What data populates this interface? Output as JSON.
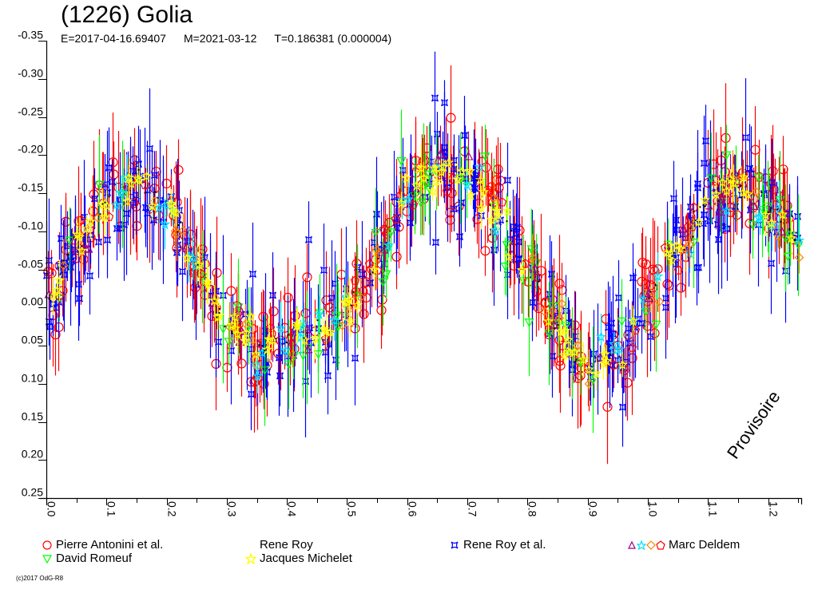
{
  "chart_data": {
    "type": "scatter",
    "title": "(1226) Golia",
    "subtitle": {
      "epoch": "E=2017-04-16.69407",
      "modified": "M=2021-03-12",
      "period": "T=0.186381 (0.000004)"
    },
    "xlabel": "",
    "ylabel": "",
    "xlim": [
      0.0,
      1.255
    ],
    "ylim": [
      -0.35,
      0.25
    ],
    "y_inverted": true,
    "x_ticks": [
      "0.0",
      "0.1",
      "0.2",
      "0.3",
      "0.4",
      "0.5",
      "0.6",
      "0.7",
      "0.8",
      "0.9",
      "1.0",
      "1.1",
      "1.2"
    ],
    "y_ticks": [
      "-0.35",
      "-0.30",
      "-0.25",
      "-0.20",
      "-0.15",
      "-0.10",
      "-0.05",
      "0.00",
      "0.05",
      "0.10",
      "0.15",
      "0.20",
      "0.25"
    ],
    "grid": false,
    "legend_position": "bottom",
    "lightcurve_model": {
      "description": "double-peaked phased lightcurve",
      "mean": -0.055,
      "points": [
        {
          "phase": 0.0,
          "mag": -0.01
        },
        {
          "phase": 0.05,
          "mag": -0.08
        },
        {
          "phase": 0.1,
          "mag": -0.14
        },
        {
          "phase": 0.15,
          "mag": -0.165
        },
        {
          "phase": 0.2,
          "mag": -0.13
        },
        {
          "phase": 0.25,
          "mag": -0.06
        },
        {
          "phase": 0.3,
          "mag": 0.02
        },
        {
          "phase": 0.35,
          "mag": 0.055
        },
        {
          "phase": 0.4,
          "mag": 0.04
        },
        {
          "phase": 0.45,
          "mag": 0.03
        },
        {
          "phase": 0.5,
          "mag": 0.0
        },
        {
          "phase": 0.55,
          "mag": -0.07
        },
        {
          "phase": 0.6,
          "mag": -0.15
        },
        {
          "phase": 0.65,
          "mag": -0.18
        },
        {
          "phase": 0.7,
          "mag": -0.17
        },
        {
          "phase": 0.75,
          "mag": -0.13
        },
        {
          "phase": 0.8,
          "mag": -0.05
        },
        {
          "phase": 0.85,
          "mag": 0.03
        },
        {
          "phase": 0.9,
          "mag": 0.08
        },
        {
          "phase": 0.95,
          "mag": 0.06
        },
        {
          "phase": 1.0,
          "mag": -0.01
        },
        {
          "phase": 1.05,
          "mag": -0.08
        },
        {
          "phase": 1.1,
          "mag": -0.14
        },
        {
          "phase": 1.15,
          "mag": -0.165
        },
        {
          "phase": 1.2,
          "mag": -0.13
        },
        {
          "phase": 1.255,
          "mag": -0.09
        }
      ]
    },
    "series": [
      {
        "name": "Pierre Antonini et al.",
        "marker": "circle",
        "color": "#ff0000",
        "count": 260,
        "scatter": 0.03,
        "err": 0.05
      },
      {
        "name": "Rene Roy",
        "marker": "none",
        "color": "#000000",
        "count": 90,
        "scatter": 0.008,
        "err": 0.01
      },
      {
        "name": "Rene Roy et al.",
        "marker": "square-star",
        "color": "#0000ff",
        "count": 260,
        "scatter": 0.03,
        "err": 0.055
      },
      {
        "name": "Marc Deldem",
        "marker": "triangle-star-diamond-pentagon",
        "color": "#ff8000",
        "colors": [
          "#a00080",
          "#00e0ff",
          "#ff8000",
          "#ff0000"
        ],
        "count": 160,
        "scatter": 0.015,
        "err": 0.025
      },
      {
        "name": "David Romeuf",
        "marker": "triangle-down",
        "color": "#00ff00",
        "count": 70,
        "scatter": 0.025,
        "err": 0.05
      },
      {
        "name": "Jacques Michelet",
        "marker": "star",
        "color": "#ffff00",
        "count": 110,
        "scatter": 0.012,
        "err": 0.02
      }
    ]
  },
  "watermark": "Provisoire",
  "copyright": "(c)2017 OdG-R8",
  "legend": [
    {
      "label": "Pierre Antonini et al.",
      "symbol": "circle-icon"
    },
    {
      "label": "Rene Roy",
      "symbol": "none"
    },
    {
      "label": "Rene Roy et al.",
      "symbol": "square-star-icon"
    },
    {
      "label": "Marc Deldem",
      "symbol": "multi-marker-icon"
    },
    {
      "label": "David Romeuf",
      "symbol": "triangle-down-icon"
    },
    {
      "label": "Jacques Michelet",
      "symbol": "star-icon"
    }
  ]
}
